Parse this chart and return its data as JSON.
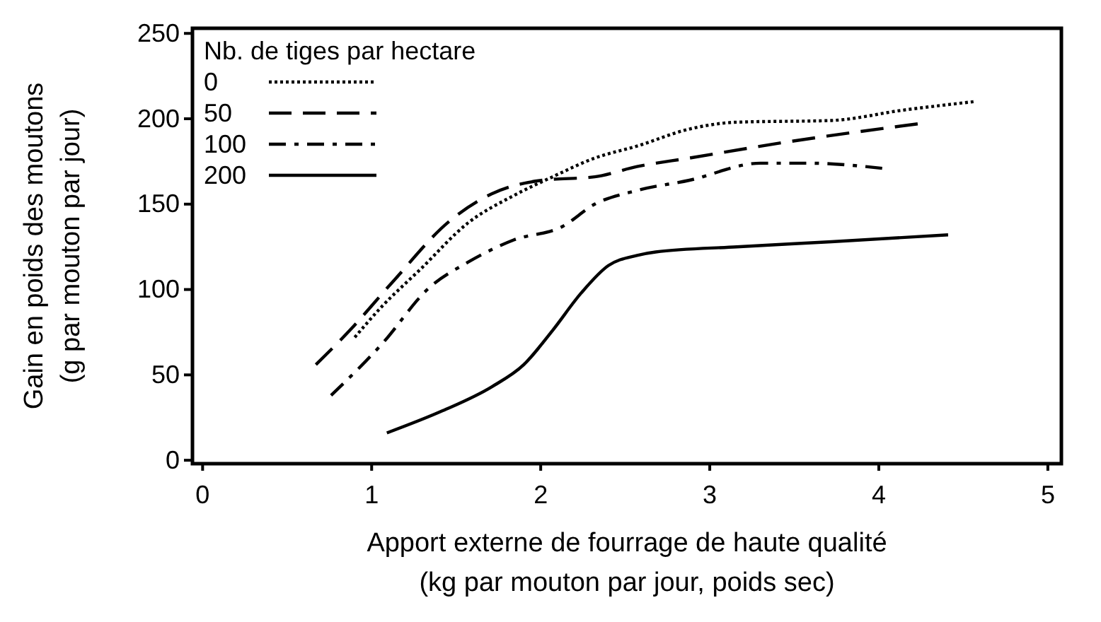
{
  "chart_data": {
    "type": "line",
    "xlabel": "Apport externe de fourrage de haute qualité\n(kg par mouton par jour, poids sec)",
    "ylabel": "Gain en poids des moutons\n(g par mouton par jour)",
    "legend_title": "Nb. de tiges par hectare",
    "legend": "top left",
    "grid": false,
    "marker": "none",
    "xlim": [
      -0.06,
      5.08
    ],
    "xticks": [
      0,
      1,
      2,
      3,
      4,
      5
    ],
    "ylim": [
      -2,
      253
    ],
    "yticks": [
      0,
      50,
      100,
      150,
      200,
      250
    ],
    "series": [
      {
        "name": "0",
        "color": "#000000",
        "line_style": "dotted",
        "x": [
          0.9,
          1.06,
          1.29,
          1.57,
          1.84,
          2.07,
          2.32,
          2.57,
          2.88,
          3.16,
          3.72,
          4.14,
          4.56
        ],
        "values": [
          72,
          90,
          112,
          139,
          155,
          166,
          177,
          184,
          194,
          198,
          199,
          205,
          210
        ]
      },
      {
        "name": "50",
        "color": "#000000",
        "line_style": "dashed",
        "x": [
          0.67,
          0.87,
          1.12,
          1.46,
          1.71,
          2.01,
          2.32,
          2.57,
          2.88,
          3.43,
          4.23
        ],
        "values": [
          56,
          76,
          104,
          140,
          156,
          164,
          166,
          172,
          177,
          186,
          197
        ]
      },
      {
        "name": "100",
        "color": "#000000",
        "line_style": "dashdot",
        "x": [
          0.76,
          1.06,
          1.34,
          1.57,
          1.84,
          2.13,
          2.32,
          2.57,
          2.88,
          3.3,
          3.58,
          4.02
        ],
        "values": [
          38,
          68,
          101,
          116,
          129,
          137,
          150,
          158,
          164,
          174,
          174,
          171
        ]
      },
      {
        "name": "200",
        "color": "#000000",
        "line_style": "solid",
        "x": [
          1.09,
          1.42,
          1.71,
          1.9,
          2.07,
          2.24,
          2.4,
          2.57,
          2.68,
          3.16,
          3.72,
          4.41
        ],
        "values": [
          16,
          29,
          43,
          56,
          76,
          98,
          114,
          120,
          122,
          125,
          128,
          132
        ]
      }
    ]
  }
}
